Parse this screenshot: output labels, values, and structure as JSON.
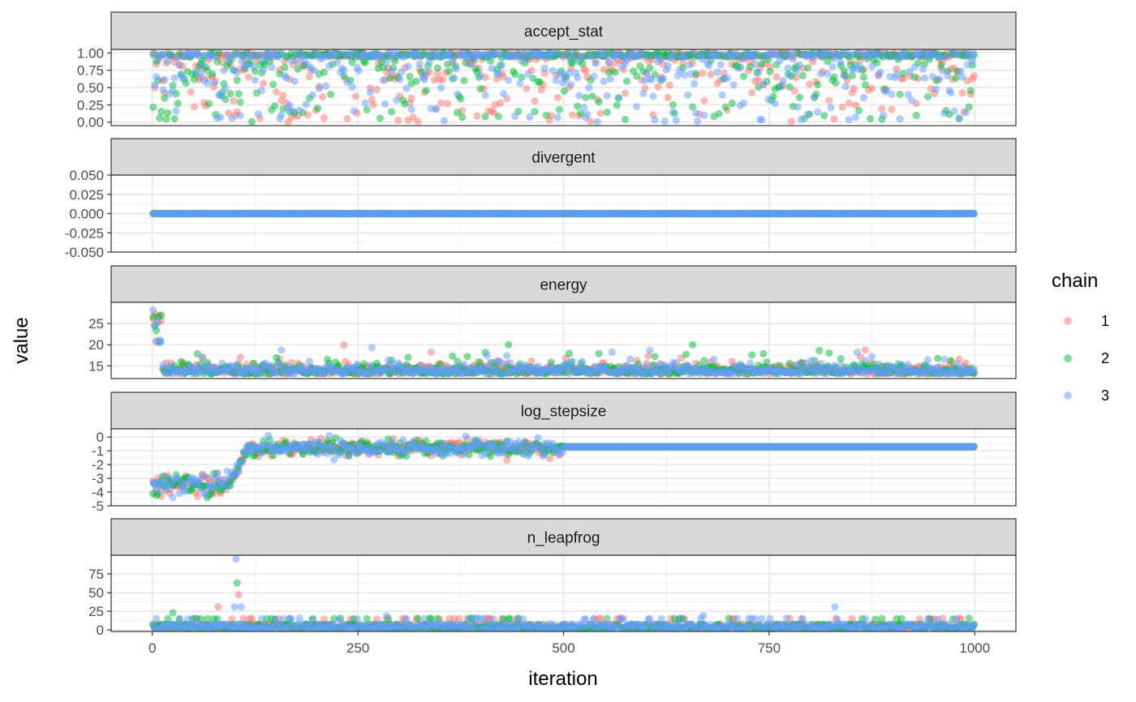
{
  "chart_data": {
    "type": "scatter",
    "xlabel": "iteration",
    "ylabel": "value",
    "xlim": [
      -50,
      1050
    ],
    "x_ticks": [
      0,
      250,
      500,
      750,
      1000
    ],
    "x_tick_labels": [
      "0",
      "250",
      "500",
      "750",
      "1000"
    ],
    "grid": true,
    "legend": {
      "title": "chain",
      "position": "right",
      "entries": [
        {
          "label": "1",
          "color": "#F8766D"
        },
        {
          "label": "2",
          "color": "#00BA38"
        },
        {
          "label": "3",
          "color": "#619CFF"
        }
      ]
    },
    "series": [
      {
        "name": "1",
        "color": "#F8766D"
      },
      {
        "name": "2",
        "color": "#00BA38"
      },
      {
        "name": "3",
        "color": "#619CFF"
      }
    ],
    "iterations": [
      1,
      1000
    ],
    "panels": [
      {
        "label": "accept_stat",
        "ylim": [
          -0.05,
          1.05
        ],
        "y_ticks": [
          0,
          0.25,
          0.5,
          0.75,
          1.0
        ],
        "y_tick_labels": [
          "0.00",
          "0.25",
          "0.50",
          "0.75",
          "1.00"
        ],
        "description": "Mostly near 1.0 with many values spread down to 0"
      },
      {
        "label": "divergent",
        "ylim": [
          -0.05,
          0.05
        ],
        "y_ticks": [
          -0.05,
          -0.025,
          0,
          0.025,
          0.05
        ],
        "y_tick_labels": [
          "-0.050",
          "-0.025",
          "0.000",
          "0.025",
          "0.050"
        ],
        "constant_value": 0
      },
      {
        "label": "energy",
        "ylim": [
          12,
          30
        ],
        "y_ticks": [
          15,
          20,
          25
        ],
        "y_tick_labels": [
          "15",
          "20",
          "25"
        ],
        "typical_range": [
          12.5,
          17.5
        ]
      },
      {
        "label": "log_stepsize",
        "ylim": [
          -5,
          0.6
        ],
        "y_ticks": [
          -5,
          -4,
          -3,
          -2,
          -1,
          0
        ],
        "y_tick_labels": [
          "-5",
          "-4",
          "-3",
          "-2",
          "-1",
          "0"
        ],
        "warmup_early_level": -3.4,
        "warmup_late_level": -0.8,
        "sampling_value": -0.7,
        "warmup_end_iteration": 500
      },
      {
        "label": "n_leapfrog",
        "ylim": [
          -2,
          100
        ],
        "y_ticks": [
          0,
          25,
          50,
          75
        ],
        "y_tick_labels": [
          "0",
          "25",
          "50",
          "75"
        ],
        "typical_values": [
          3,
          7,
          15
        ],
        "outliers": [
          {
            "x": 80,
            "y": 31,
            "chain": "1"
          },
          {
            "x": 102,
            "y": 95,
            "chain": "3"
          },
          {
            "x": 103,
            "y": 63,
            "chain": "2"
          },
          {
            "x": 105,
            "y": 47,
            "chain": "1"
          },
          {
            "x": 100,
            "y": 31,
            "chain": "3"
          },
          {
            "x": 108,
            "y": 31,
            "chain": "3"
          },
          {
            "x": 25,
            "y": 23,
            "chain": "2"
          },
          {
            "x": 830,
            "y": 31,
            "chain": "3"
          },
          {
            "x": 285,
            "y": 19,
            "chain": "3"
          },
          {
            "x": 670,
            "y": 19,
            "chain": "3"
          }
        ]
      }
    ]
  }
}
